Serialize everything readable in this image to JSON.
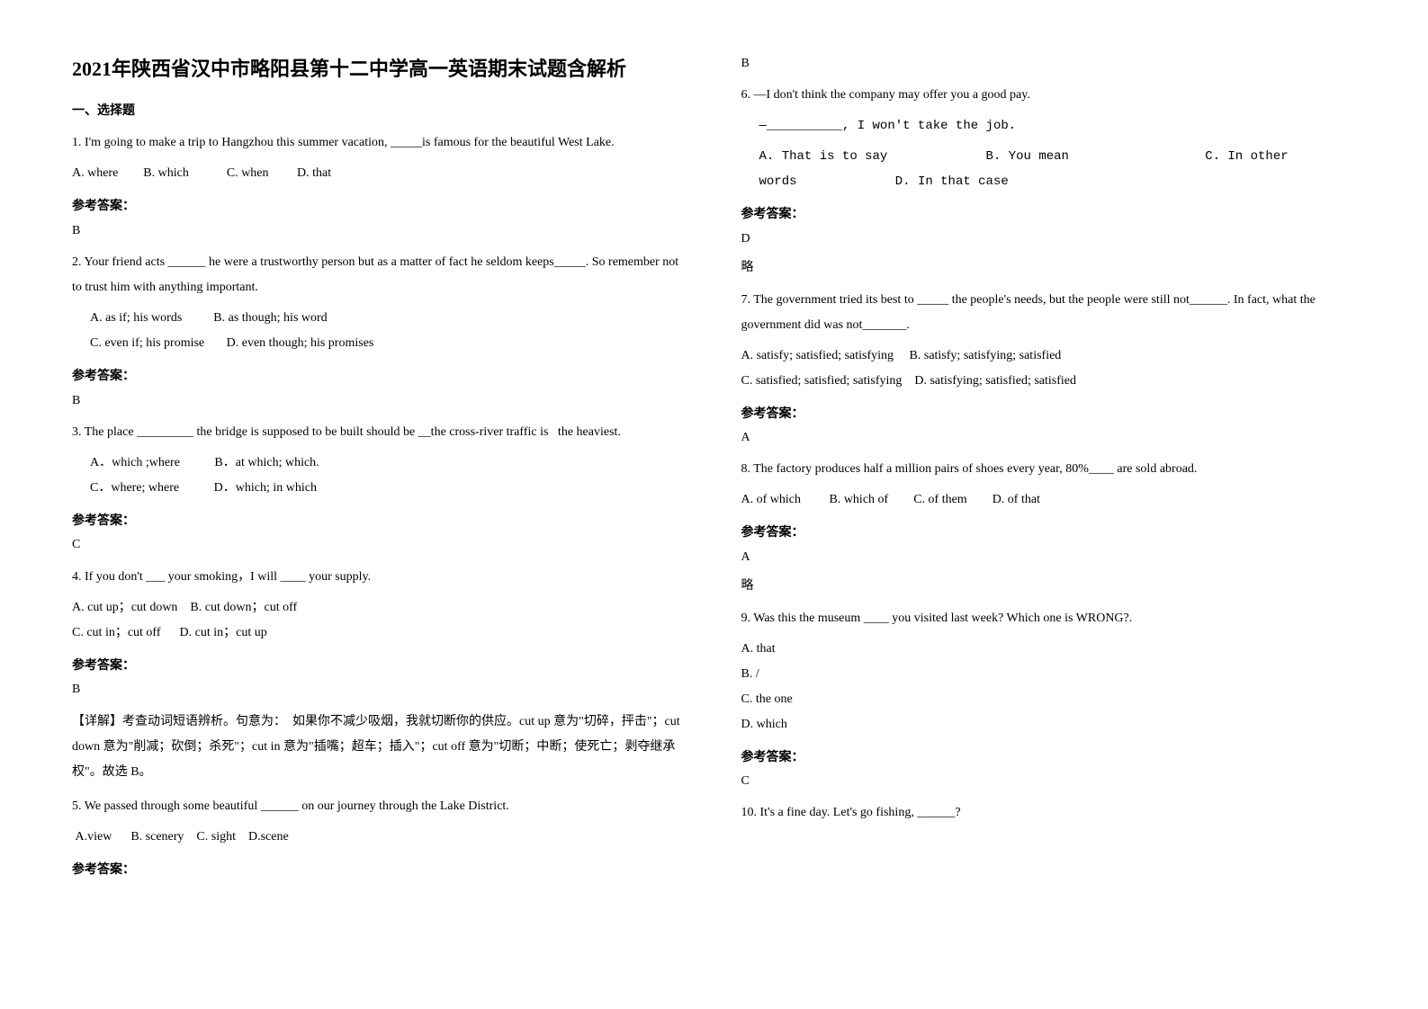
{
  "title": "2021年陕西省汉中市略阳县第十二中学高一英语期末试题含解析",
  "section_header": "一、选择题",
  "answer_label": "参考答案：",
  "lue": "略",
  "left": {
    "q1": {
      "text": "1. I'm going to make a trip to Hangzhou this summer vacation, _____is famous for the beautiful West Lake.",
      "opts": "A. where        B. which            C. when         D. that",
      "ans": "B"
    },
    "q2": {
      "text": "2. Your friend acts ______ he were a trustworthy person but as a matter of fact he seldom keeps_____. So remember not to trust him with anything important.",
      "opts1": "A. as if; his words          B. as though; his word",
      "opts2": "C. even if; his promise       D. even though; his promises",
      "ans": "B"
    },
    "q3": {
      "text": "3. The place _________ the bridge is supposed to be built should be __the cross-river traffic is   the heaviest.",
      "optsA": "A．which ;where",
      "optsB": "B．at which; which.",
      "optsC": "C．where; where",
      "optsD": "D．which; in which",
      "ans": "C"
    },
    "q4": {
      "text": "4. If you don't ___ your smoking，I will ____ your supply.",
      "opts1": "A. cut up；cut down    B. cut down；cut off",
      "opts2": "C. cut in；cut off      D. cut in；cut up",
      "ans": "B",
      "explanation": "【详解】考查动词短语辨析。句意为：  如果你不减少吸烟，我就切断你的供应。cut up 意为\"切碎，抨击\"；cut down 意为\"削减；砍倒；杀死\"；cut in 意为\"插嘴；超车；插入\"；cut off 意为\"切断；中断；使死亡；剥夺继承权\"。故选 B。"
    },
    "q5": {
      "text": "5. We passed through some beautiful ______ on our journey through the Lake District.",
      "opts": " A.view      B. scenery    C. sight    D.scene"
    }
  },
  "right": {
    "q5ans": "B",
    "q6": {
      "text1": "6. —I don't think the company may offer you a good pay.",
      "text2": "—__________, I won't take the job.",
      "optsA": "A. That is to say",
      "optsB": "B. You mean",
      "optsC": "C. In other words",
      "optsD": "D. In that case",
      "ans": "D"
    },
    "q7": {
      "text": "7. The government tried its best to _____ the people's needs, but the people were still not______. In fact, what the government did was not_______.",
      "opts1": "A. satisfy; satisfied; satisfying     B. satisfy; satisfying; satisfied",
      "opts2": "C. satisfied; satisfied; satisfying    D. satisfying; satisfied; satisfied",
      "ans": "A"
    },
    "q8": {
      "text": "8. The factory produces half a million pairs of shoes every year, 80%____ are sold abroad.",
      "opts": "A. of which         B. which of        C. of them        D. of that",
      "ans": "A"
    },
    "q9": {
      "text": "9. Was this the museum ____ you visited last week? Which one is WRONG?.",
      "optA": "A. that",
      "optB": "B. /",
      "optC": "C. the one",
      "optD": "D. which",
      "ans": "C"
    },
    "q10": {
      "text": "10. It's a fine day. Let's go fishing, ______?"
    }
  }
}
